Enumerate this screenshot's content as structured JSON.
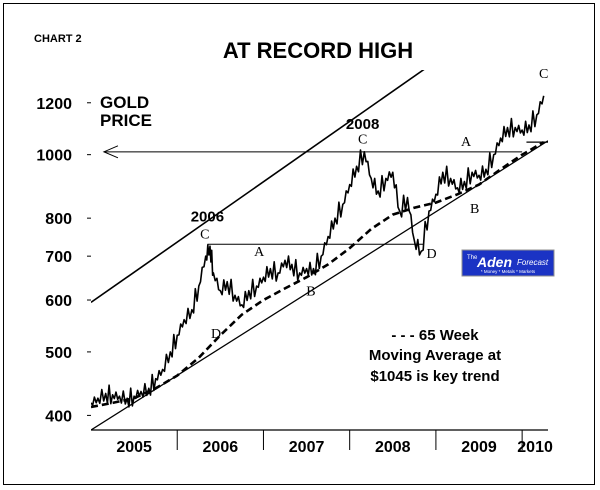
{
  "chart_data": {
    "type": "line",
    "badge": "CHART 2",
    "title": "AT RECORD HIGH",
    "series_label": [
      "GOLD",
      "PRICE"
    ],
    "scale": "log",
    "ylim": [
      380,
      1300
    ],
    "y_ticks": [
      400,
      500,
      600,
      700,
      800,
      1000,
      1200
    ],
    "x_ticks": [
      "2005",
      "2006",
      "2007",
      "2008",
      "2009",
      "2010"
    ],
    "xlim": [
      2005.0,
      2010.3
    ],
    "series": [
      {
        "style": "solid",
        "points": [
          [
            2005.0,
            418
          ],
          [
            2005.08,
            425
          ],
          [
            2005.17,
            432
          ],
          [
            2005.25,
            430
          ],
          [
            2005.33,
            428
          ],
          [
            2005.42,
            425
          ],
          [
            2005.5,
            428
          ],
          [
            2005.58,
            435
          ],
          [
            2005.67,
            440
          ],
          [
            2005.75,
            455
          ],
          [
            2005.83,
            470
          ],
          [
            2005.92,
            500
          ],
          [
            2006.0,
            530
          ],
          [
            2006.08,
            560
          ],
          [
            2006.17,
            580
          ],
          [
            2006.25,
            630
          ],
          [
            2006.33,
            700
          ],
          [
            2006.38,
            725
          ],
          [
            2006.42,
            660
          ],
          [
            2006.5,
            620
          ],
          [
            2006.58,
            640
          ],
          [
            2006.67,
            610
          ],
          [
            2006.75,
            590
          ],
          [
            2006.83,
            620
          ],
          [
            2006.92,
            630
          ],
          [
            2007.0,
            650
          ],
          [
            2007.08,
            670
          ],
          [
            2007.17,
            660
          ],
          [
            2007.25,
            690
          ],
          [
            2007.33,
            680
          ],
          [
            2007.42,
            660
          ],
          [
            2007.5,
            670
          ],
          [
            2007.58,
            670
          ],
          [
            2007.67,
            700
          ],
          [
            2007.75,
            750
          ],
          [
            2007.83,
            800
          ],
          [
            2007.92,
            840
          ],
          [
            2008.0,
            900
          ],
          [
            2008.08,
            960
          ],
          [
            2008.17,
            1010
          ],
          [
            2008.25,
            920
          ],
          [
            2008.33,
            880
          ],
          [
            2008.42,
            920
          ],
          [
            2008.5,
            940
          ],
          [
            2008.58,
            820
          ],
          [
            2008.67,
            860
          ],
          [
            2008.75,
            740
          ],
          [
            2008.83,
            712
          ],
          [
            2008.92,
            820
          ],
          [
            2009.0,
            870
          ],
          [
            2009.08,
            940
          ],
          [
            2009.17,
            920
          ],
          [
            2009.25,
            890
          ],
          [
            2009.33,
            910
          ],
          [
            2009.42,
            940
          ],
          [
            2009.5,
            930
          ],
          [
            2009.58,
            950
          ],
          [
            2009.67,
            1000
          ],
          [
            2009.75,
            1060
          ],
          [
            2009.83,
            1100
          ],
          [
            2009.92,
            1100
          ],
          [
            2010.0,
            1090
          ],
          [
            2010.08,
            1110
          ],
          [
            2010.17,
            1150
          ],
          [
            2010.25,
            1230
          ]
        ]
      },
      {
        "style": "dashed",
        "label": [
          "- - - 65 Week",
          "Moving Average at",
          "$1045 is key trend"
        ],
        "points": [
          [
            2005.0,
            412
          ],
          [
            2005.25,
            418
          ],
          [
            2005.5,
            425
          ],
          [
            2005.75,
            440
          ],
          [
            2006.0,
            460
          ],
          [
            2006.25,
            490
          ],
          [
            2006.5,
            530
          ],
          [
            2006.75,
            570
          ],
          [
            2007.0,
            600
          ],
          [
            2007.25,
            625
          ],
          [
            2007.5,
            650
          ],
          [
            2007.75,
            680
          ],
          [
            2008.0,
            720
          ],
          [
            2008.25,
            770
          ],
          [
            2008.5,
            810
          ],
          [
            2008.75,
            830
          ],
          [
            2009.0,
            845
          ],
          [
            2009.25,
            870
          ],
          [
            2009.5,
            900
          ],
          [
            2009.75,
            950
          ],
          [
            2010.0,
            1000
          ],
          [
            2010.25,
            1045
          ]
        ]
      }
    ],
    "channel_lines": [
      {
        "from": [
          2005.0,
          595
        ],
        "to": [
          2010.3,
          1830
        ]
      },
      {
        "from": [
          2005.0,
          380
        ],
        "to": [
          2010.3,
          1050
        ]
      }
    ],
    "reference_lines": [
      {
        "type": "arrow_left",
        "y": 1010,
        "from_x": 2010.0,
        "to_x": 2005.15
      },
      {
        "type": "segment",
        "y": 730,
        "from_x": 2006.35,
        "to_x": 2008.85
      },
      {
        "type": "dash_tail",
        "y": 1045,
        "from_x": 2010.05,
        "to_x": 2010.3
      }
    ],
    "annotations": [
      {
        "text": "2006",
        "x": 2006.35,
        "y": 790,
        "bold": true
      },
      {
        "text": "C",
        "x": 2006.32,
        "y": 745
      },
      {
        "text": "A",
        "x": 2006.95,
        "y": 700
      },
      {
        "text": "2008",
        "x": 2008.15,
        "y": 1095,
        "bold": true
      },
      {
        "text": "C",
        "x": 2008.15,
        "y": 1040
      },
      {
        "text": "A",
        "x": 2009.35,
        "y": 1030
      },
      {
        "text": "B",
        "x": 2007.55,
        "y": 610
      },
      {
        "text": "B",
        "x": 2009.45,
        "y": 815
      },
      {
        "text": "D",
        "x": 2006.45,
        "y": 525
      },
      {
        "text": "D",
        "x": 2008.95,
        "y": 695
      },
      {
        "text": "C",
        "x": 2010.25,
        "y": 1310
      }
    ],
    "logo": {
      "small": "The",
      "name": "Aden",
      "word": "Forecast",
      "tagline": "* Money * Metals * Markets"
    },
    "colors": {
      "line": "#000000",
      "badge": "#1a35d6",
      "logo_bg": "#1b33c4",
      "logo_text": "#ffffff"
    }
  }
}
